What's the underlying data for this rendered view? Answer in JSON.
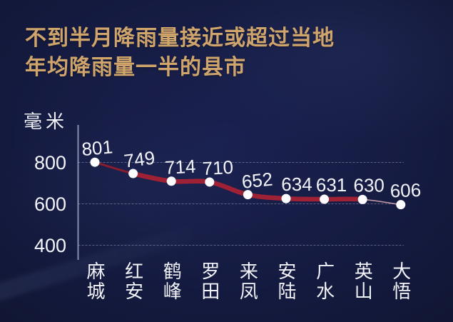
{
  "header": {
    "title_line1": "不到半月降雨量接近或超过当地",
    "title_line2": "年均降雨量一半的县市"
  },
  "chart_data": {
    "type": "line",
    "title": "不到半月降雨量接近或超过当地年均降雨量一半的县市",
    "unit_label": "毫米",
    "categories": [
      "麻城",
      "红安",
      "鹤峰",
      "罗田",
      "来凤",
      "安陆",
      "广水",
      "英山",
      "大悟"
    ],
    "values": [
      801,
      749,
      714,
      710,
      652,
      634,
      631,
      630,
      606
    ],
    "xlabel": "",
    "ylabel": "毫米",
    "yticks": [
      800,
      600,
      400
    ],
    "ylim": [
      400,
      850
    ],
    "grid": true,
    "legend": "none",
    "colors": {
      "background": "#141a3e",
      "title": "#d0a56c",
      "line": "#9e2136",
      "line_start": "#8c1c2e",
      "line_fade": "#d9aab6",
      "dot": "#fdfdff",
      "label": "#f3f4f9",
      "grid": "#aeb8d6",
      "axis": "#aab4d2"
    }
  }
}
